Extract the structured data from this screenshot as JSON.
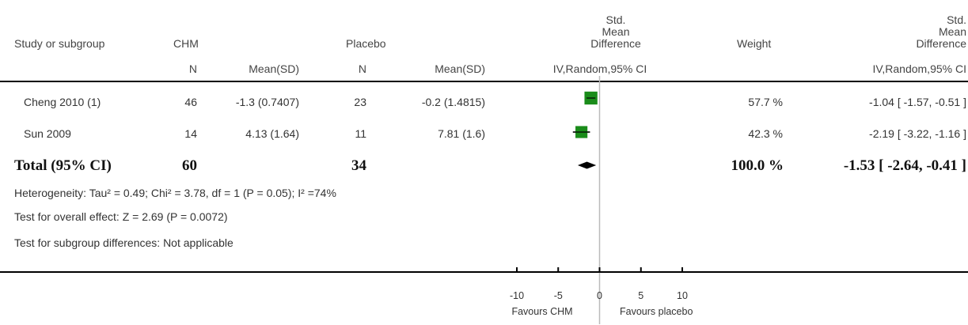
{
  "headers": {
    "study": "Study or subgroup",
    "group1": "CHM",
    "group2": "Placebo",
    "n": "N",
    "meansd": "Mean(SD)",
    "plot_lines": [
      "Std.",
      "Mean",
      "Difference"
    ],
    "plot_method": "IV,Random,95% CI",
    "weight": "Weight",
    "effect_lines": [
      "Std.",
      "Mean",
      "Difference"
    ],
    "effect_method": "IV,Random,95% CI"
  },
  "studies": [
    {
      "name": "Cheng 2010 (1)",
      "n1": "46",
      "meansd1": "-1.3 (0.7407)",
      "n2": "23",
      "meansd2": "-0.2 (1.4815)",
      "weight": "57.7 %",
      "ci": "-1.04 [ -1.57, -0.51 ]"
    },
    {
      "name": "Sun 2009",
      "n1": "14",
      "meansd1": "4.13 (1.64)",
      "n2": "11",
      "meansd2": "7.81 (1.6)",
      "weight": "42.3 %",
      "ci": "-2.19 [ -3.22, -1.16 ]"
    }
  ],
  "total": {
    "label": "Total (95% CI)",
    "n1": "60",
    "n2": "34",
    "weight": "100.0 %",
    "ci": "-1.53 [ -2.64, -0.41 ]"
  },
  "notes": {
    "heterogeneity": "Heterogeneity: Tau² = 0.49; Chi² = 3.78, df = 1 (P = 0.05); I² =74%",
    "overall": "Test for overall effect: Z = 2.69 (P = 0.0072)",
    "subgroup": "Test for subgroup differences: Not applicable"
  },
  "axis": {
    "ticks": [
      "-10",
      "-5",
      "0",
      "5",
      "10"
    ],
    "favours_left": "Favours CHM",
    "favours_right": "Favours placebo"
  },
  "colors": {
    "box": "#1a8c1a",
    "diamond": "#000000"
  },
  "chart_data": {
    "type": "forest",
    "xlim": [
      -10,
      10
    ],
    "xticks": [
      -10,
      -5,
      0,
      5,
      10
    ],
    "studies": [
      {
        "name": "Cheng 2010 (1)",
        "est": -1.04,
        "lo": -1.57,
        "hi": -0.51,
        "weight": 57.7
      },
      {
        "name": "Sun 2009",
        "est": -2.19,
        "lo": -3.22,
        "hi": -1.16,
        "weight": 42.3
      }
    ],
    "pooled": {
      "est": -1.53,
      "lo": -2.64,
      "hi": -0.41
    }
  }
}
